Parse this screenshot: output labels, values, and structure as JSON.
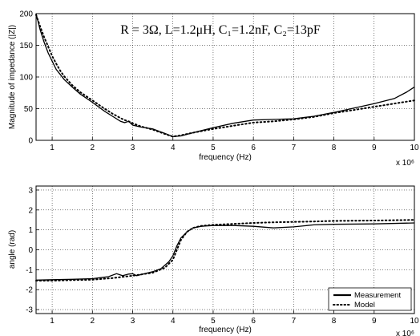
{
  "chart_data": [
    {
      "type": "line",
      "title": "R = 3Ω, L=1.2μH, C₁=1.2nF, C₂=13pF",
      "xlabel": "frequency (Hz)",
      "ylabel": "Magnitude of impedance (|Z|)",
      "x_multiplier_label": "x 10⁶",
      "xlim": [
        0.6,
        10
      ],
      "ylim": [
        0,
        200
      ],
      "xticks": [
        "1",
        "2",
        "3",
        "4",
        "5",
        "6",
        "7",
        "8",
        "9",
        "10"
      ],
      "yticks": [
        "0",
        "50",
        "100",
        "150",
        "200"
      ],
      "grid": true,
      "series": [
        {
          "name": "Measurement",
          "style": "solid",
          "x": [
            0.6,
            0.7,
            0.8,
            0.9,
            1.0,
            1.1,
            1.2,
            1.3,
            1.5,
            1.7,
            2.0,
            2.3,
            2.5,
            2.7,
            2.8,
            2.9,
            3.0,
            3.2,
            3.5,
            3.8,
            4.0,
            4.2,
            4.5,
            5.0,
            5.5,
            6.0,
            6.5,
            7.0,
            7.5,
            8.0,
            8.5,
            9.0,
            9.5,
            9.8,
            10.0
          ],
          "y": [
            200,
            175,
            155,
            138,
            125,
            112,
            104,
            96,
            84,
            73,
            60,
            46,
            38,
            30,
            28,
            30,
            24,
            21,
            18,
            11,
            6,
            7,
            12,
            20,
            27,
            32,
            33,
            34,
            38,
            44,
            51,
            58,
            66,
            76,
            84
          ]
        },
        {
          "name": "Model",
          "style": "dotted",
          "x": [
            0.6,
            0.7,
            0.8,
            0.9,
            1.0,
            1.1,
            1.2,
            1.3,
            1.5,
            1.7,
            2.0,
            2.3,
            2.5,
            2.7,
            2.8,
            2.9,
            3.0,
            3.2,
            3.5,
            3.8,
            4.0,
            4.2,
            4.5,
            5.0,
            5.5,
            6.0,
            6.5,
            7.0,
            7.5,
            8.0,
            8.5,
            9.0,
            9.5,
            9.8,
            10.0
          ],
          "y": [
            198,
            180,
            163,
            148,
            133,
            121,
            110,
            101,
            87,
            76,
            63,
            50,
            42,
            35,
            32,
            30,
            27,
            22,
            17,
            10,
            6,
            8,
            12,
            18,
            23,
            28,
            30,
            33,
            37,
            43,
            48,
            53,
            58,
            61,
            63
          ]
        }
      ]
    },
    {
      "type": "line",
      "title": "",
      "xlabel": "frequency (Hz)",
      "ylabel": "angle (rad)",
      "x_multiplier_label": "x 10⁶",
      "xlim": [
        0.6,
        10
      ],
      "ylim": [
        -3.2,
        3.2
      ],
      "xticks": [
        "1",
        "2",
        "3",
        "4",
        "5",
        "6",
        "7",
        "8",
        "9",
        "10"
      ],
      "yticks": [
        "-3",
        "-2",
        "-1",
        "0",
        "1",
        "2",
        "3"
      ],
      "grid": true,
      "legend": {
        "position": "bottom-right",
        "entries": [
          "Measurement",
          "Model"
        ]
      },
      "series": [
        {
          "name": "Measurement",
          "style": "solid",
          "x": [
            0.6,
            1.0,
            1.5,
            2.0,
            2.4,
            2.6,
            2.75,
            2.9,
            3.0,
            3.1,
            3.3,
            3.5,
            3.7,
            3.9,
            4.0,
            4.1,
            4.2,
            4.35,
            4.5,
            4.7,
            5.0,
            5.5,
            6.0,
            6.5,
            7.0,
            7.5,
            8.0,
            9.0,
            10.0
          ],
          "y": [
            -1.52,
            -1.5,
            -1.48,
            -1.45,
            -1.35,
            -1.2,
            -1.3,
            -1.22,
            -1.2,
            -1.3,
            -1.2,
            -1.1,
            -0.95,
            -0.6,
            -0.3,
            0.2,
            0.6,
            0.9,
            1.1,
            1.18,
            1.22,
            1.22,
            1.18,
            1.1,
            1.15,
            1.25,
            1.28,
            1.3,
            1.35
          ]
        },
        {
          "name": "Model",
          "style": "dotted",
          "x": [
            0.6,
            1.0,
            1.5,
            2.0,
            2.5,
            3.0,
            3.5,
            3.8,
            4.0,
            4.1,
            4.2,
            4.35,
            4.5,
            4.7,
            5.0,
            5.5,
            6.0,
            6.5,
            7.0,
            7.5,
            8.0,
            9.0,
            10.0
          ],
          "y": [
            -1.55,
            -1.55,
            -1.52,
            -1.5,
            -1.42,
            -1.3,
            -1.15,
            -0.9,
            -0.5,
            0,
            0.5,
            0.9,
            1.1,
            1.2,
            1.25,
            1.3,
            1.35,
            1.38,
            1.4,
            1.42,
            1.45,
            1.47,
            1.5
          ]
        }
      ]
    }
  ]
}
